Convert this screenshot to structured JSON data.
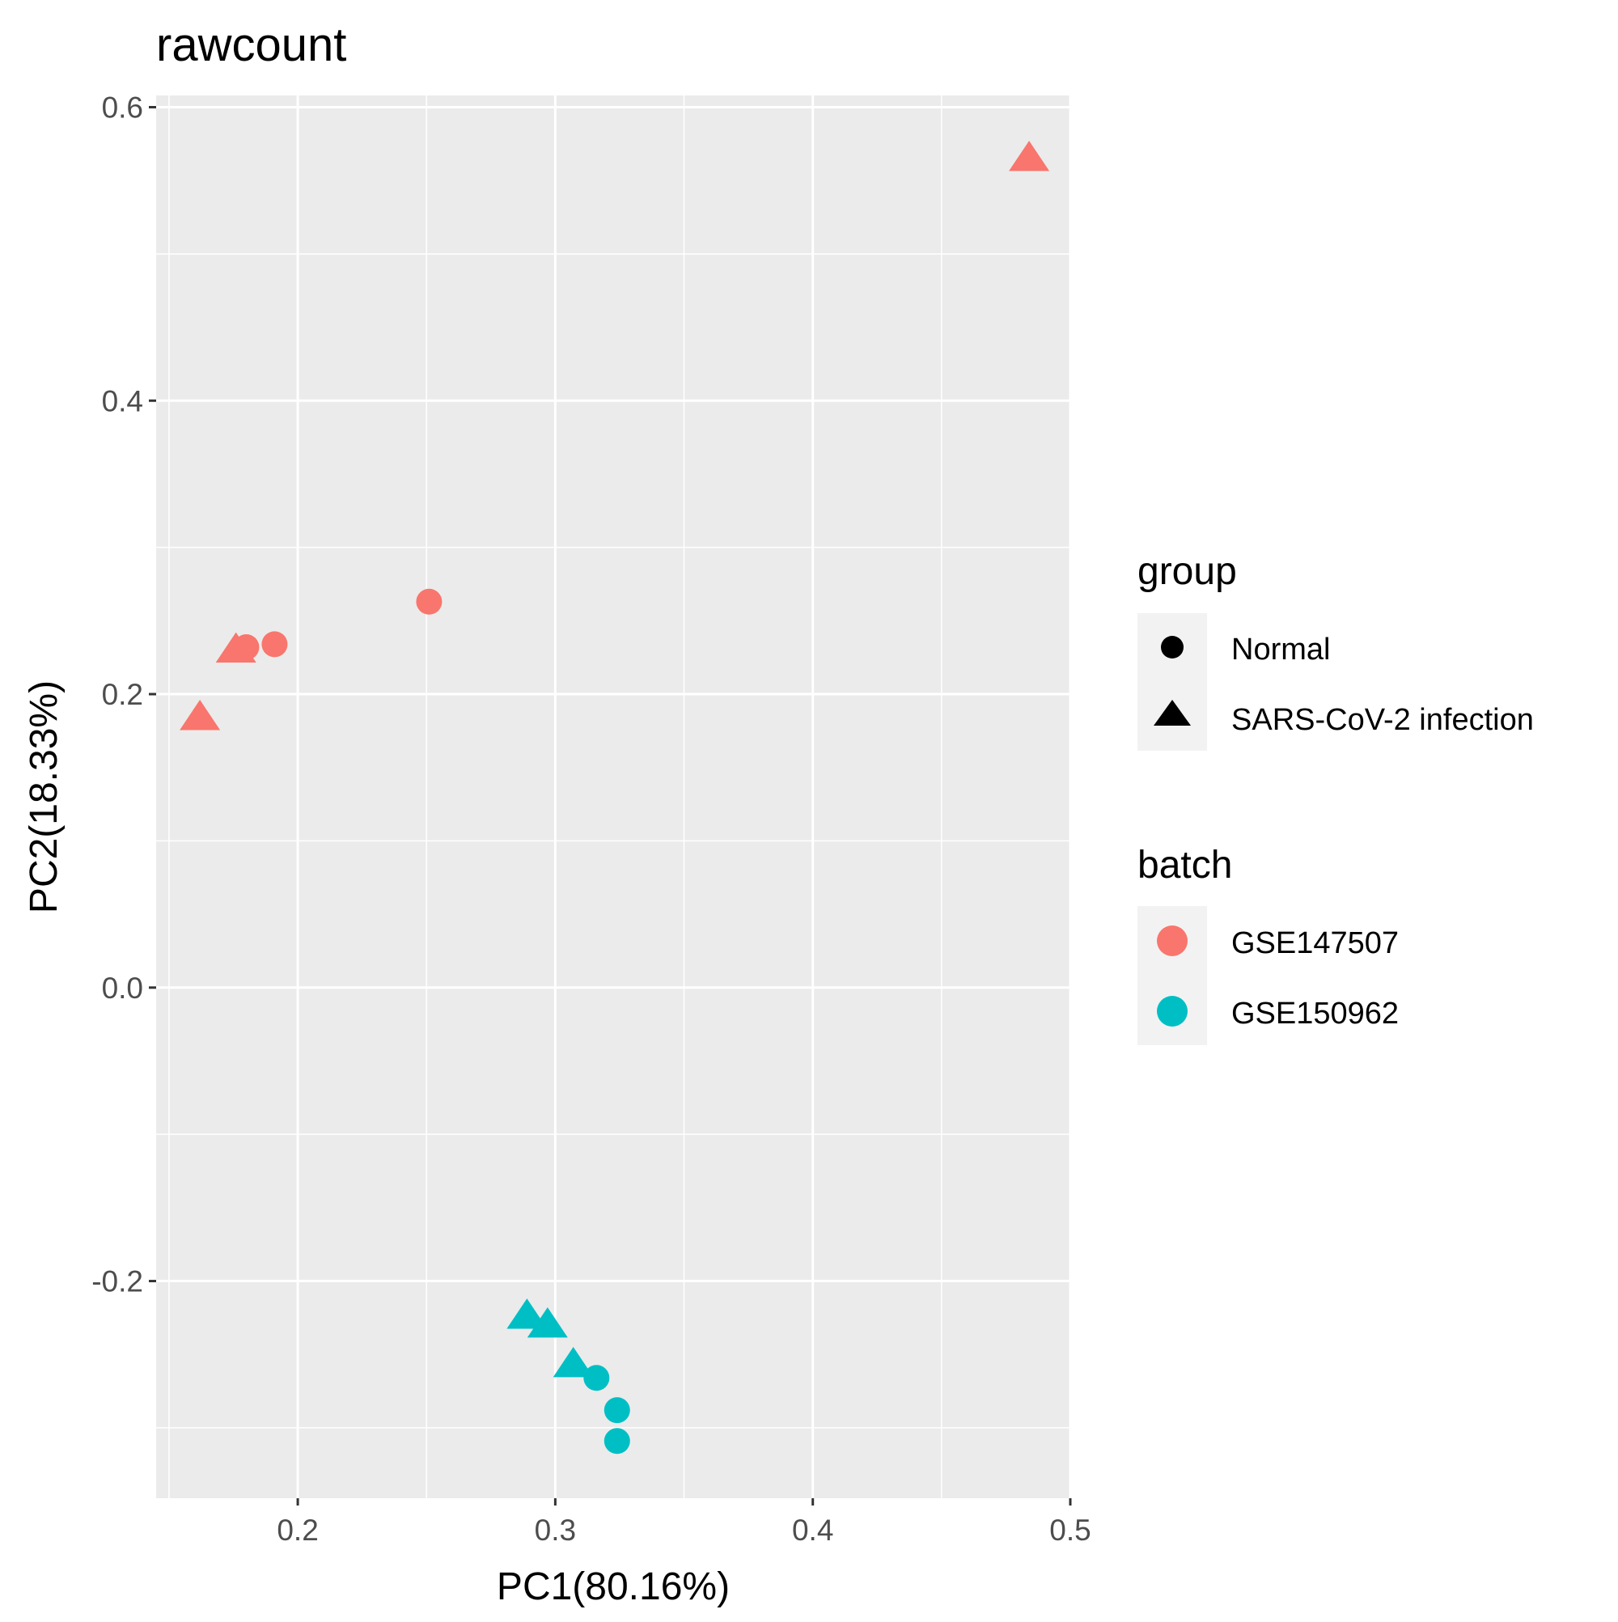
{
  "chart_data": {
    "type": "scatter",
    "title": "rawcount",
    "xlabel": "PC1(80.16%)",
    "ylabel": "PC2(18.33%)",
    "xlim": [
      0.145,
      0.5
    ],
    "ylim": [
      -0.348,
      0.608
    ],
    "x_major_ticks": [
      0.2,
      0.3,
      0.4,
      0.5
    ],
    "x_minor_ticks": [
      0.15,
      0.25,
      0.35,
      0.45
    ],
    "y_major_ticks": [
      -0.2,
      0.0,
      0.2,
      0.4,
      0.6
    ],
    "y_minor_ticks": [
      -0.3,
      -0.1,
      0.1,
      0.3,
      0.5
    ],
    "x_tick_labels": [
      "0.2",
      "0.3",
      "0.4",
      "0.5"
    ],
    "y_tick_labels": [
      "-0.2",
      "0.0",
      "0.2",
      "0.4",
      "0.6"
    ],
    "grid": true,
    "panel_background": "#ebebeb",
    "legend_position": "right",
    "legends": [
      {
        "title": "group",
        "kind": "shape",
        "entries": [
          {
            "label": "Normal",
            "shape": "circle"
          },
          {
            "label": "SARS-CoV-2 infection",
            "shape": "triangle"
          }
        ]
      },
      {
        "title": "batch",
        "kind": "color",
        "entries": [
          {
            "label": "GSE147507",
            "color": "#F8766D"
          },
          {
            "label": "GSE150962",
            "color": "#00BFC4"
          }
        ]
      }
    ],
    "points": [
      {
        "x": 0.484,
        "y": 0.565,
        "group": "SARS-CoV-2 infection",
        "batch": "GSE147507"
      },
      {
        "x": 0.251,
        "y": 0.263,
        "group": "Normal",
        "batch": "GSE147507"
      },
      {
        "x": 0.191,
        "y": 0.234,
        "group": "Normal",
        "batch": "GSE147507"
      },
      {
        "x": 0.18,
        "y": 0.232,
        "group": "Normal",
        "batch": "GSE147507"
      },
      {
        "x": 0.176,
        "y": 0.23,
        "group": "SARS-CoV-2 infection",
        "batch": "GSE147507"
      },
      {
        "x": 0.162,
        "y": 0.184,
        "group": "SARS-CoV-2 infection",
        "batch": "GSE147507"
      },
      {
        "x": 0.289,
        "y": -0.224,
        "group": "SARS-CoV-2 infection",
        "batch": "GSE150962"
      },
      {
        "x": 0.297,
        "y": -0.23,
        "group": "SARS-CoV-2 infection",
        "batch": "GSE150962"
      },
      {
        "x": 0.307,
        "y": -0.257,
        "group": "SARS-CoV-2 infection",
        "batch": "GSE150962"
      },
      {
        "x": 0.316,
        "y": -0.266,
        "group": "Normal",
        "batch": "GSE150962"
      },
      {
        "x": 0.324,
        "y": -0.288,
        "group": "Normal",
        "batch": "GSE150962"
      },
      {
        "x": 0.324,
        "y": -0.309,
        "group": "Normal",
        "batch": "GSE150962"
      }
    ]
  }
}
